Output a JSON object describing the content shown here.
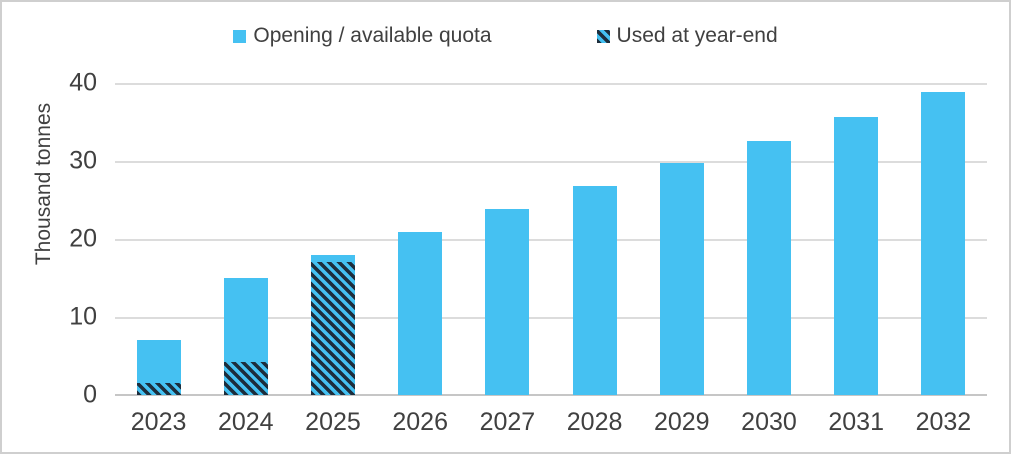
{
  "colors": {
    "bar_fill": "#45c1f2",
    "hatch_dark": "#1d2e3d",
    "gridline": "#dcdcdc",
    "axis_line": "#c6c6c6",
    "text": "#404040"
  },
  "chart_data": {
    "type": "bar",
    "title": "",
    "categories": [
      "2023",
      "2024",
      "2025",
      "2026",
      "2027",
      "2028",
      "2029",
      "2030",
      "2031",
      "2032"
    ],
    "series": [
      {
        "name": "Opening / available quota",
        "style": "solid",
        "values": [
          7,
          15,
          17.9,
          20.9,
          23.9,
          26.8,
          29.8,
          32.6,
          35.7,
          38.8
        ]
      },
      {
        "name": "Used at year-end",
        "style": "hatched",
        "values": [
          1.5,
          4.2,
          17,
          0,
          0,
          0,
          0,
          0,
          0,
          0
        ]
      }
    ],
    "series_overlap": "used-bars-drawn-in-front-at-same-x",
    "xlabel": "",
    "ylabel": "Thousand tonnes",
    "ylim": [
      0,
      40
    ],
    "yticks": [
      0,
      10,
      20,
      30,
      40
    ],
    "grid": true,
    "legend_position": "top-center"
  }
}
